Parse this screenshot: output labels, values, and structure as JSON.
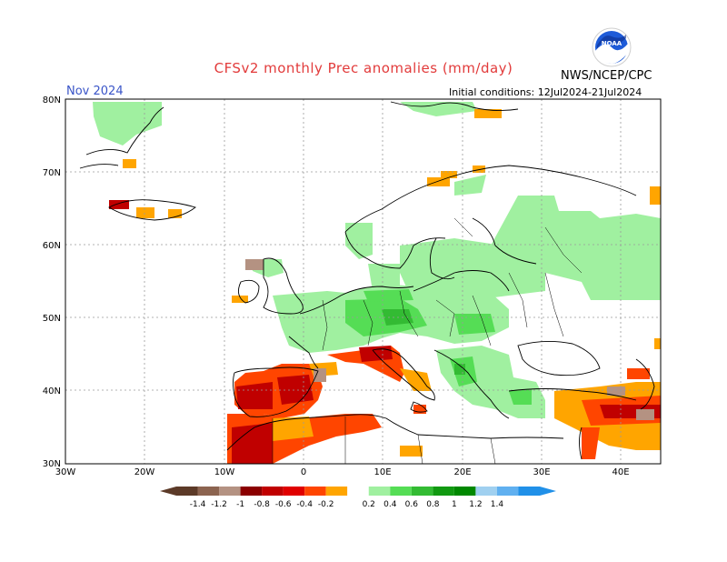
{
  "header": {
    "title": "CFSv2 monthly Prec anomalies (mm/day)",
    "period": "Nov 2024",
    "initial_conditions": "Initial conditions: 12Jul2024-21Jul2024",
    "agency": "NWS/NCEP/CPC",
    "logo_text": "NOAA"
  },
  "axes": {
    "lat_labels": [
      "80N",
      "70N",
      "60N",
      "50N",
      "40N",
      "30N"
    ],
    "lon_labels": [
      "30W",
      "20W",
      "10W",
      "0",
      "10E",
      "20E",
      "30E",
      "40E"
    ]
  },
  "legend": {
    "labels": [
      "-1.4",
      "-1.2",
      "-1",
      "-0.8",
      "-0.6",
      "-0.4",
      "-0.2",
      "0.2",
      "0.4",
      "0.6",
      "0.8",
      "1",
      "1.2",
      "1.4"
    ],
    "colors": [
      "#5c3a28",
      "#8c6450",
      "#b49282",
      "#8b0000",
      "#c00000",
      "#e00000",
      "#ff4500",
      "#ffa500",
      "#ffffff",
      "#a0f0a0",
      "#55dd55",
      "#33bb33",
      "#119911",
      "#008800",
      "#a0d0f0",
      "#60b0f0",
      "#2090e8"
    ],
    "left_arrow_color": "#5c3a28",
    "right_arrow_color": "#2090e8"
  },
  "colors": {
    "dry_strong": "#c00000",
    "dry_dark": "#8b0000",
    "dry_orange": "#ff4500",
    "dry_light": "#ffa500",
    "dry_brown": "#b49282",
    "wet_light": "#a0f0a0",
    "wet_mid": "#55dd55",
    "wet_strong": "#33bb33",
    "grid_line": "#9a9a9a",
    "coast_line": "#000000"
  }
}
